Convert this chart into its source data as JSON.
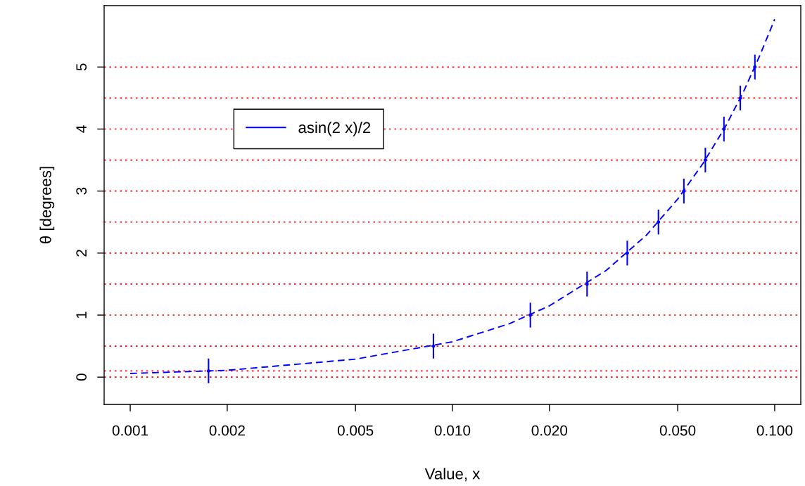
{
  "chart_data": {
    "type": "line",
    "xlabel": "Value, x",
    "ylabel": "θ [degrees]",
    "log": "x",
    "xlim": [
      0.00083,
      0.1205
    ],
    "ylim": [
      -0.44,
      5.99
    ],
    "xticks": [
      {
        "value": 0.001,
        "label": "0.001"
      },
      {
        "value": 0.002,
        "label": "0.002"
      },
      {
        "value": 0.005,
        "label": "0.005"
      },
      {
        "value": 0.01,
        "label": "0.010"
      },
      {
        "value": 0.02,
        "label": "0.020"
      },
      {
        "value": 0.05,
        "label": "0.050"
      },
      {
        "value": 0.1,
        "label": "0.100"
      }
    ],
    "yticks": [
      0,
      1,
      2,
      3,
      4,
      5
    ],
    "series": [
      {
        "name": "asin(2 x)/2",
        "type": "line",
        "color": "#0000ff",
        "line_style": "dashed",
        "x": [
          0.001,
          0.002,
          0.005,
          0.01,
          0.015,
          0.02,
          0.03,
          0.04,
          0.05,
          0.06,
          0.07,
          0.08,
          0.09,
          0.1
        ],
        "values": [
          0.06,
          0.11,
          0.29,
          0.57,
          0.86,
          1.15,
          1.72,
          2.29,
          2.87,
          3.45,
          4.02,
          4.6,
          5.19,
          5.77
        ]
      },
      {
        "type": "scatter",
        "color": "#0000ff",
        "x": [
          0.00175,
          0.00873,
          0.01745,
          0.02617,
          0.03488,
          0.04358,
          0.05226,
          0.06093,
          0.06959,
          0.07822,
          0.08682
        ],
        "values": [
          0.1,
          0.5,
          1,
          1.5,
          2,
          2.5,
          3,
          3.5,
          4,
          4.5,
          5
        ],
        "errors": [
          0.2,
          0.2,
          0.2,
          0.2,
          0.2,
          0.2,
          0.2,
          0.2,
          0.2,
          0.2,
          0.2
        ]
      }
    ],
    "ref_lines": [
      {
        "axis": "y",
        "value": 0,
        "color": "#ff0000",
        "line_style": "dotted"
      },
      {
        "axis": "y",
        "value": 0.1,
        "color": "#ff0000",
        "line_style": "dotted"
      },
      {
        "axis": "y",
        "value": 0.5,
        "color": "#ff0000",
        "line_style": "dotted"
      },
      {
        "axis": "y",
        "value": 1,
        "color": "#ff0000",
        "line_style": "dotted"
      },
      {
        "axis": "y",
        "value": 1.5,
        "color": "#ff0000",
        "line_style": "dotted"
      },
      {
        "axis": "y",
        "value": 2,
        "color": "#ff0000",
        "line_style": "dotted"
      },
      {
        "axis": "y",
        "value": 2.5,
        "color": "#ff0000",
        "line_style": "dotted"
      },
      {
        "axis": "y",
        "value": 3,
        "color": "#ff0000",
        "line_style": "dotted"
      },
      {
        "axis": "y",
        "value": 3.5,
        "color": "#ff0000",
        "line_style": "dotted"
      },
      {
        "axis": "y",
        "value": 4,
        "color": "#ff0000",
        "line_style": "dotted"
      },
      {
        "axis": "y",
        "value": 4.5,
        "color": "#ff0000",
        "line_style": "dotted"
      },
      {
        "axis": "y",
        "value": 5,
        "color": "#ff0000",
        "line_style": "dotted"
      }
    ],
    "legend": "top left",
    "grid": false
  }
}
